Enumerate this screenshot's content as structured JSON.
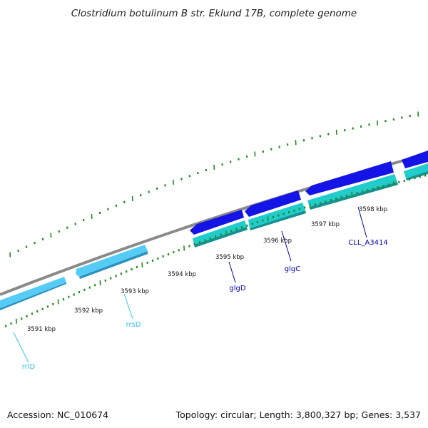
{
  "title": "Clostridium botulinum B str. Eklund 17B, complete genome",
  "footer": {
    "accession": "Accession: NC_010674",
    "summary": "Topology: circular; Length: 3,800,327 bp; Genes: 3,537"
  },
  "colors": {
    "backbone": "#8a8a8a",
    "rrna_feature": "#55ccf5",
    "rrna_feature_dark": "#2a90be",
    "cds_forward": "#1414e6",
    "cds_reverse": "#20cccc",
    "cds_reverse_dark": "#149090",
    "ruler_ticks": "#228b22",
    "rrna_label": "#33c3ee",
    "cds_label": "#0000aa"
  },
  "scale_labels": [
    "3591 kbp",
    "3592 kbp",
    "3593 kbp",
    "3594 kbp",
    "3595 kbp",
    "3596 kbp",
    "3597 kbp",
    "3598 kbp"
  ],
  "features": [
    {
      "name": "rrlD",
      "kind": "rRNA",
      "strand": "reverse"
    },
    {
      "name": "rrsD",
      "kind": "rRNA",
      "strand": "reverse"
    },
    {
      "name": "glgD",
      "kind": "CDS",
      "strand": "forward"
    },
    {
      "name": "glgC",
      "kind": "CDS",
      "strand": "forward"
    },
    {
      "name": "CLL_A3414",
      "kind": "CDS",
      "strand": "forward"
    }
  ]
}
